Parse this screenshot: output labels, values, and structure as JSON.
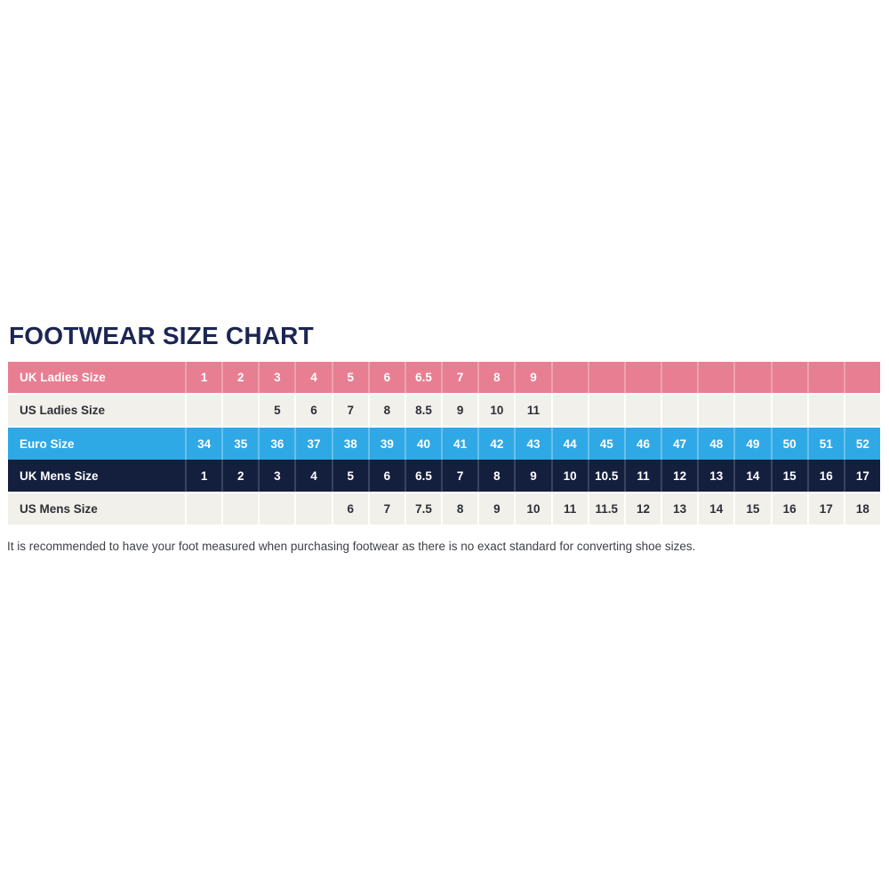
{
  "title": "FOOTWEAR SIZE CHART",
  "footnote": "It is recommended to have your foot measured when purchasing footwear as there is no exact standard for converting shoe sizes.",
  "colors": {
    "title_navy": "#1b2653",
    "pink_row": "#e87e92",
    "blue_row": "#2fa9e5",
    "navy_row": "#141f3e",
    "beige_row": "#f1f0ea",
    "light_row_text": "#2f3038",
    "colored_row_text": "#ffffff",
    "footnote_text": "#3f4146"
  },
  "chart_data": {
    "type": "table",
    "title": "FOOTWEAR SIZE CHART",
    "columns_count": 19,
    "rows": [
      {
        "label": "UK Ladies Size",
        "style": "pink",
        "gap_below": true,
        "values": [
          "1",
          "2",
          "3",
          "4",
          "5",
          "6",
          "6.5",
          "7",
          "8",
          "9",
          "",
          "",
          "",
          "",
          "",
          "",
          "",
          "",
          ""
        ]
      },
      {
        "label": "US Ladies Size",
        "style": "light",
        "gap_below": true,
        "values": [
          "",
          "",
          "5",
          "6",
          "7",
          "8",
          "8.5",
          "9",
          "10",
          "11",
          "",
          "",
          "",
          "",
          "",
          "",
          "",
          "",
          ""
        ]
      },
      {
        "label": "Euro Size",
        "style": "blue",
        "gap_below": false,
        "values": [
          "34",
          "35",
          "36",
          "37",
          "38",
          "39",
          "40",
          "41",
          "42",
          "43",
          "44",
          "45",
          "46",
          "47",
          "48",
          "49",
          "50",
          "51",
          "52"
        ]
      },
      {
        "label": "UK Mens Size",
        "style": "navy",
        "gap_below": true,
        "values": [
          "1",
          "2",
          "3",
          "4",
          "5",
          "6",
          "6.5",
          "7",
          "8",
          "9",
          "10",
          "10.5",
          "11",
          "12",
          "13",
          "14",
          "15",
          "16",
          "17"
        ]
      },
      {
        "label": "US Mens Size",
        "style": "light",
        "gap_below": false,
        "values": [
          "",
          "",
          "",
          "",
          "6",
          "7",
          "7.5",
          "8",
          "9",
          "10",
          "11",
          "11.5",
          "12",
          "13",
          "14",
          "15",
          "16",
          "17",
          "18"
        ]
      }
    ]
  }
}
